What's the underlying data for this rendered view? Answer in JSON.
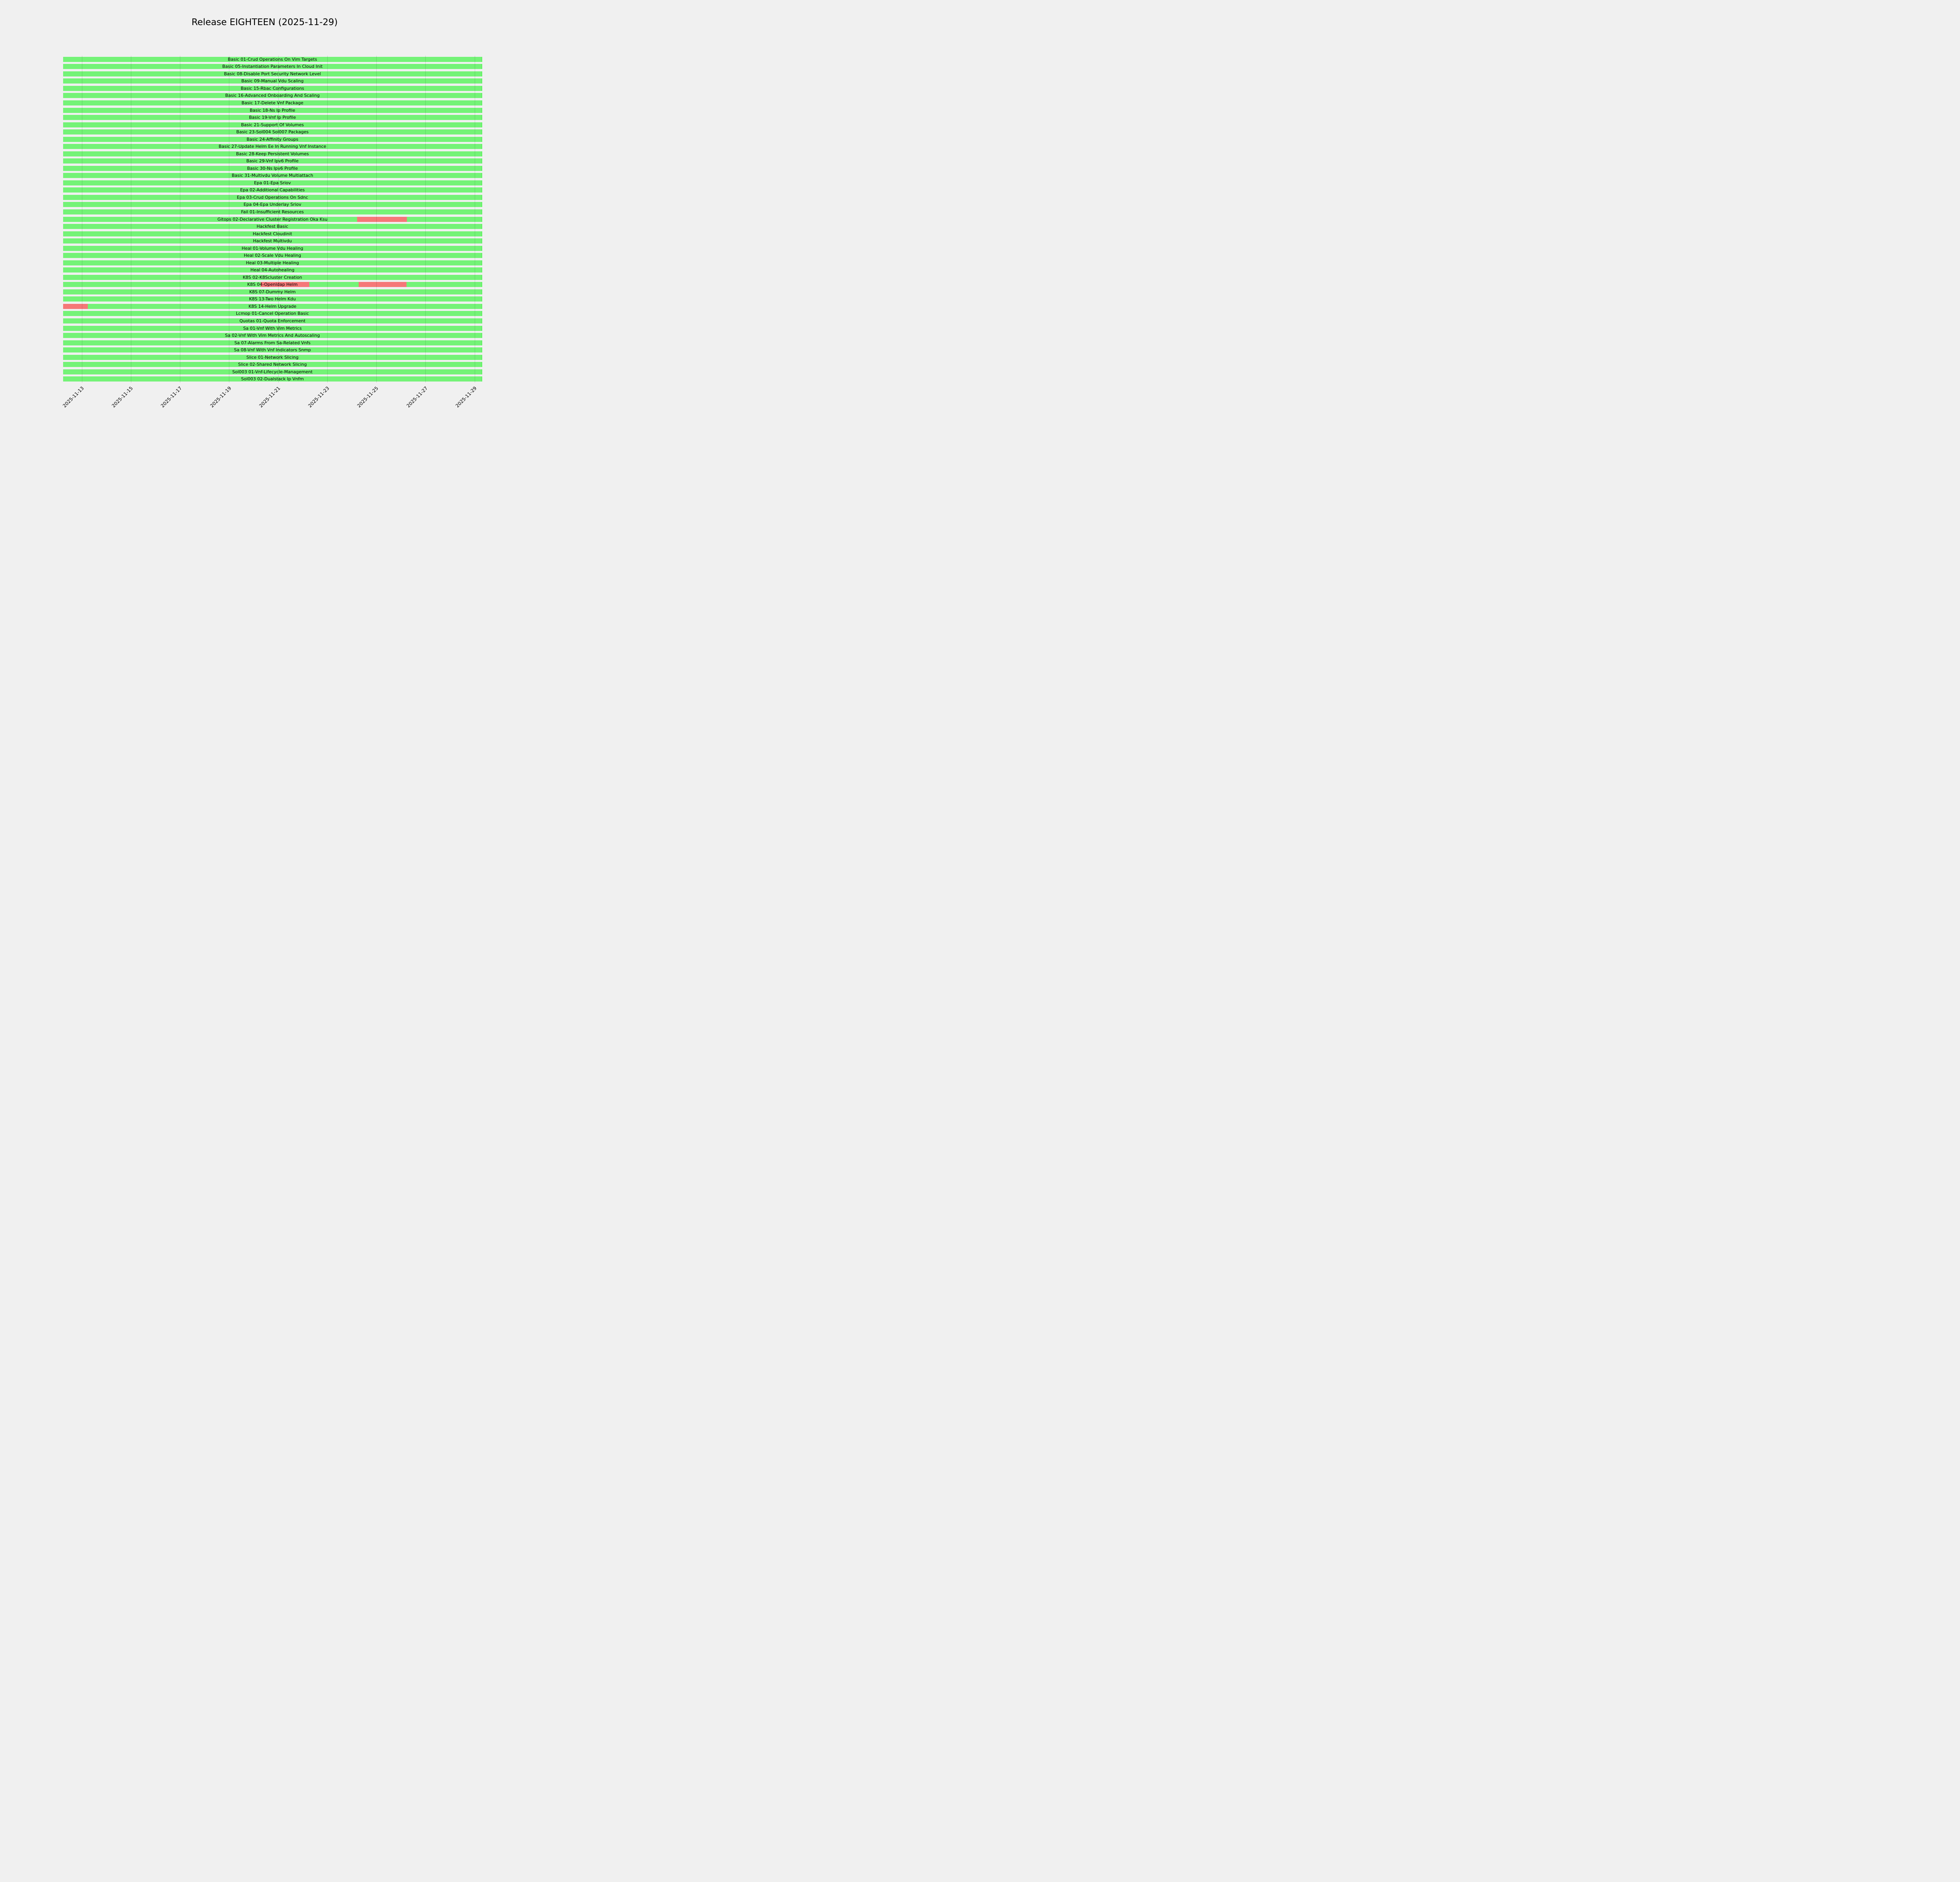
{
  "title": "Release EIGHTEEN (2025-11-29)",
  "colors": {
    "background": "#f0f0f0",
    "pass": "#74f377",
    "fail": "#f57878",
    "bar_right_edge": "#3df03d",
    "gridline": "rgba(0,0,0,0.14)",
    "text": "#000000"
  },
  "chart_data": {
    "type": "bar",
    "variant": "gantt-timeline",
    "title": "Release EIGHTEEN (2025-11-29)",
    "legend": null,
    "grid": true,
    "x_axis": {
      "type": "datetime",
      "min": "2025-11-12T05:45:00",
      "max": "2025-11-29T07:00:00",
      "tick_labels": [
        "2025-11-13",
        "2025-11-15",
        "2025-11-17",
        "2025-11-19",
        "2025-11-21",
        "2025-11-23",
        "2025-11-25",
        "2025-11-27",
        "2025-11-29"
      ],
      "tick_rotation_deg": 45
    },
    "status_colors": {
      "pass": "#74f377",
      "fail": "#f57878"
    },
    "bar_span": [
      "2025-11-12T05:45:00",
      "2025-11-29T07:00:00"
    ],
    "rows": [
      {
        "label": "Basic 01-Crud Operations On Vim Targets",
        "fail_intervals": []
      },
      {
        "label": "Basic 05-Instantiation Parameters In Cloud Init",
        "fail_intervals": []
      },
      {
        "label": "Basic 08-Disable Port Security Network Level",
        "fail_intervals": []
      },
      {
        "label": "Basic 09-Manual Vdu Scaling",
        "fail_intervals": []
      },
      {
        "label": "Basic 15-Rbac Configurations",
        "fail_intervals": []
      },
      {
        "label": "Basic 16-Advanced Onboarding And Scaling",
        "fail_intervals": []
      },
      {
        "label": "Basic 17-Delete Vnf Package",
        "fail_intervals": []
      },
      {
        "label": "Basic 18-Ns Ip Profile",
        "fail_intervals": []
      },
      {
        "label": "Basic 19-Vnf Ip Profile",
        "fail_intervals": []
      },
      {
        "label": "Basic 21-Support Of Volumes",
        "fail_intervals": []
      },
      {
        "label": "Basic 23-Sol004 Sol007 Packages",
        "fail_intervals": []
      },
      {
        "label": "Basic 24-Affinity Groups",
        "fail_intervals": []
      },
      {
        "label": "Basic 27-Update Helm Ee In Running Vnf Instance",
        "fail_intervals": []
      },
      {
        "label": "Basic 28-Keep Persistent Volumes",
        "fail_intervals": []
      },
      {
        "label": "Basic 29-Vnf Ipv6 Profile",
        "fail_intervals": []
      },
      {
        "label": "Basic 30-Ns Ipv6 Profile",
        "fail_intervals": []
      },
      {
        "label": "Basic 31-Multivdu Volume Multiattach",
        "fail_intervals": []
      },
      {
        "label": "Epa 01-Epa Sriov",
        "fail_intervals": []
      },
      {
        "label": "Epa 02-Additional Capabilities",
        "fail_intervals": []
      },
      {
        "label": "Epa 03-Crud Operations On Sdnc",
        "fail_intervals": []
      },
      {
        "label": "Epa 04-Epa Underlay Sriov",
        "fail_intervals": []
      },
      {
        "label": "Fail 01-Insufficient Resources",
        "fail_intervals": []
      },
      {
        "label": "Gitops 02-Declarative Cluster Registration Oka Ksu",
        "fail_intervals": [
          [
            "2025-11-24T05:15:00",
            "2025-11-26T05:45:00"
          ]
        ]
      },
      {
        "label": "Hackfest Basic",
        "fail_intervals": []
      },
      {
        "label": "Hackfest Cloudinit",
        "fail_intervals": []
      },
      {
        "label": "Hackfest Multivdu",
        "fail_intervals": []
      },
      {
        "label": "Heal 01-Volume Vdu Healing",
        "fail_intervals": []
      },
      {
        "label": "Heal 02-Scale Vdu Healing",
        "fail_intervals": []
      },
      {
        "label": "Heal 03-Multiple Healing",
        "fail_intervals": []
      },
      {
        "label": "Heal 04-Autohealing",
        "fail_intervals": []
      },
      {
        "label": "K8S 02-K8Scluster Creation",
        "fail_intervals": []
      },
      {
        "label": "K8S 04-Openldap Helm",
        "fail_intervals": [
          [
            "2025-11-20T06:45:00",
            "2025-11-22T06:30:00"
          ],
          [
            "2025-11-24T06:30:00",
            "2025-11-26T05:30:00"
          ]
        ]
      },
      {
        "label": "K8S 07-Dummy Helm",
        "fail_intervals": []
      },
      {
        "label": "K8S 13-Two Helm Kdu",
        "fail_intervals": []
      },
      {
        "label": "K8S 14-Helm Upgrade",
        "fail_intervals": [
          [
            "2025-11-12T05:45:00",
            "2025-11-13T06:00:00"
          ]
        ]
      },
      {
        "label": "Lcmop 01-Cancel Operation Basic",
        "fail_intervals": []
      },
      {
        "label": "Quotas 01-Quota Enforcement",
        "fail_intervals": []
      },
      {
        "label": "Sa 01-Vnf With Vim Metrics",
        "fail_intervals": []
      },
      {
        "label": "Sa 02-Vnf With Vim Metrics And Autoscaling",
        "fail_intervals": []
      },
      {
        "label": "Sa 07-Alarms From Sa-Related Vnfs",
        "fail_intervals": []
      },
      {
        "label": "Sa 08-Vnf With Vnf Indicators Snmp",
        "fail_intervals": []
      },
      {
        "label": "Slice 01-Network Slicing",
        "fail_intervals": []
      },
      {
        "label": "Slice 02-Shared Network Slicing",
        "fail_intervals": []
      },
      {
        "label": "Sol003 01-Vnf-Lifecycle-Management",
        "fail_intervals": []
      },
      {
        "label": "Sol003 02-Dualstack Ip Vnfm",
        "fail_intervals": []
      }
    ]
  }
}
